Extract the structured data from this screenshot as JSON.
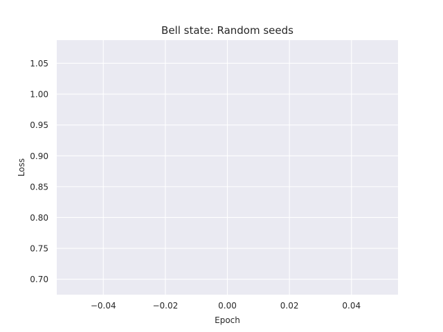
{
  "chart_data": {
    "type": "line",
    "title": "Bell state: Random seeds",
    "xlabel": "Epoch",
    "ylabel": "Loss",
    "xlim": [
      -0.055,
      0.055
    ],
    "ylim": [
      0.675,
      1.0875
    ],
    "xticks": [
      -0.04,
      -0.02,
      0.0,
      0.02,
      0.04
    ],
    "xtick_labels": [
      "−0.04",
      "−0.02",
      "0.00",
      "0.02",
      "0.04"
    ],
    "yticks": [
      0.7,
      0.75,
      0.8,
      0.85,
      0.9,
      0.95,
      1.0,
      1.05
    ],
    "ytick_labels": [
      "0.70",
      "0.75",
      "0.80",
      "0.85",
      "0.90",
      "0.95",
      "1.00",
      "1.05"
    ],
    "grid": true,
    "series": [],
    "background_color": "#eaeaf2",
    "grid_color": "#ffffff"
  }
}
